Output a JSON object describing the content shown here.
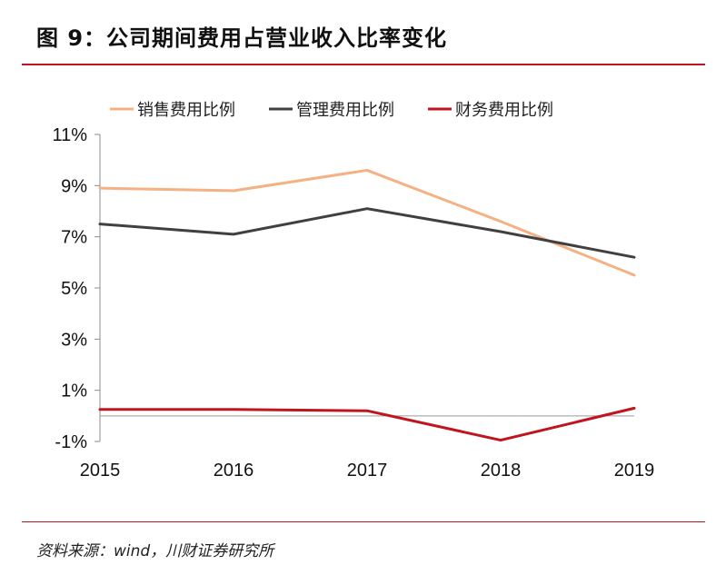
{
  "figure": {
    "title": "图 9：公司期间费用占营业收入比率变化",
    "source": "资料来源：wind，川财证券研究所"
  },
  "chart_data": {
    "type": "line",
    "categories": [
      "2015",
      "2016",
      "2017",
      "2018",
      "2019"
    ],
    "series": [
      {
        "name": "销售费用比例",
        "color": "#f4b183",
        "values": [
          8.9,
          8.8,
          9.6,
          7.6,
          5.5
        ]
      },
      {
        "name": "管理费用比例",
        "color": "#404040",
        "values": [
          7.5,
          7.1,
          8.1,
          7.2,
          6.2
        ]
      },
      {
        "name": "财务费用比例",
        "color": "#c0141f",
        "values": [
          0.25,
          0.25,
          0.2,
          -0.95,
          0.3
        ]
      }
    ],
    "y_ticks": [
      "11%",
      "9%",
      "7%",
      "5%",
      "3%",
      "1%",
      "-1%"
    ],
    "y_tick_values": [
      11,
      9,
      7,
      5,
      3,
      1,
      -1
    ],
    "ylim": [
      -1,
      11
    ],
    "zero_line": true,
    "legend_position": "top",
    "grid": false
  }
}
